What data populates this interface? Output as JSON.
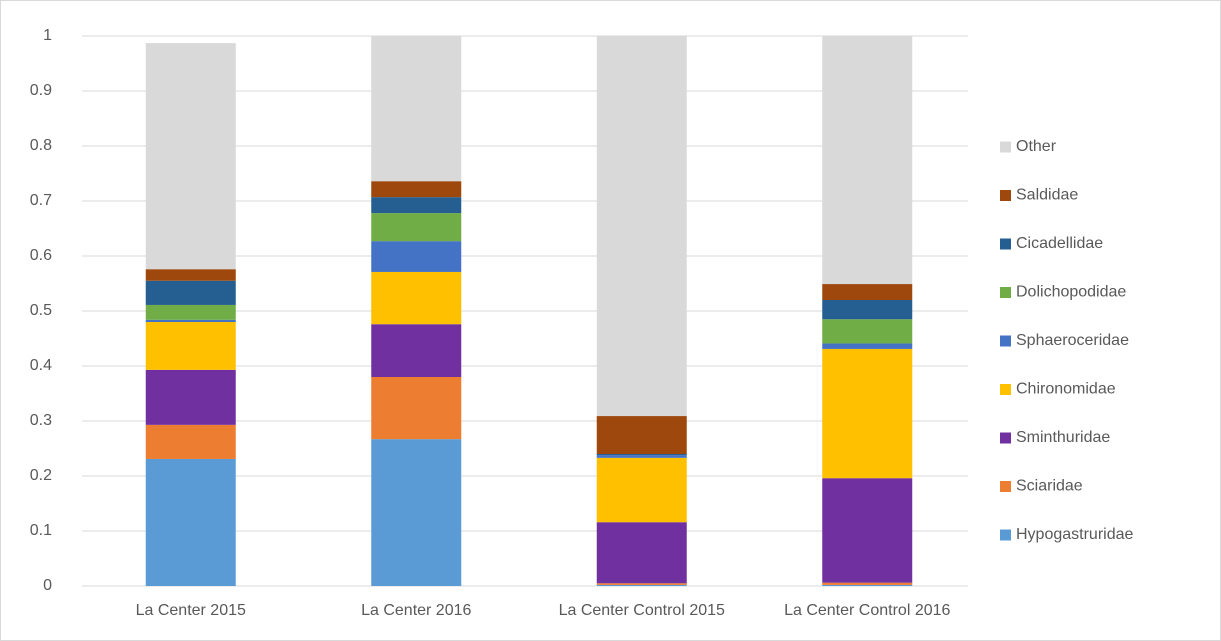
{
  "chart_data": {
    "type": "stacked_bar",
    "categories": [
      "La Center 2015",
      "La Center 2016",
      "La Center Control 2015",
      "La Center Control 2016"
    ],
    "series": [
      {
        "name": "Hypogastruridae",
        "color": "#5b9bd5",
        "values": [
          0.231,
          0.267,
          0.002,
          0.002
        ]
      },
      {
        "name": "Sciaridae",
        "color": "#ed7d31",
        "values": [
          0.062,
          0.113,
          0.003,
          0.004
        ]
      },
      {
        "name": "Sminthuridae",
        "color": "#7030a0",
        "values": [
          0.1,
          0.096,
          0.111,
          0.19
        ]
      },
      {
        "name": "Chironomidae",
        "color": "#ffc000",
        "values": [
          0.087,
          0.095,
          0.117,
          0.235
        ]
      },
      {
        "name": "Sphaeroceridae",
        "color": "#4472c4",
        "values": [
          0.004,
          0.056,
          0.005,
          0.01
        ]
      },
      {
        "name": "Dolichopodidae",
        "color": "#70ad47",
        "values": [
          0.027,
          0.051,
          0,
          0.044
        ]
      },
      {
        "name": "Cicadellidae",
        "color": "#255e91",
        "values": [
          0.044,
          0.029,
          0.002,
          0.035
        ]
      },
      {
        "name": "Saldidae",
        "color": "#9e480e",
        "values": [
          0.021,
          0.029,
          0.069,
          0.029
        ]
      },
      {
        "name": "Other",
        "color": "#d9d9d9",
        "values": [
          0.411,
          0.264,
          0.691,
          0.451
        ]
      }
    ],
    "ylim": [
      0,
      1
    ],
    "yticks": [
      0,
      0.1,
      0.2,
      0.3,
      0.4,
      0.5,
      0.6,
      0.7,
      0.8,
      0.9,
      1
    ],
    "grid": true,
    "legend": "right"
  }
}
